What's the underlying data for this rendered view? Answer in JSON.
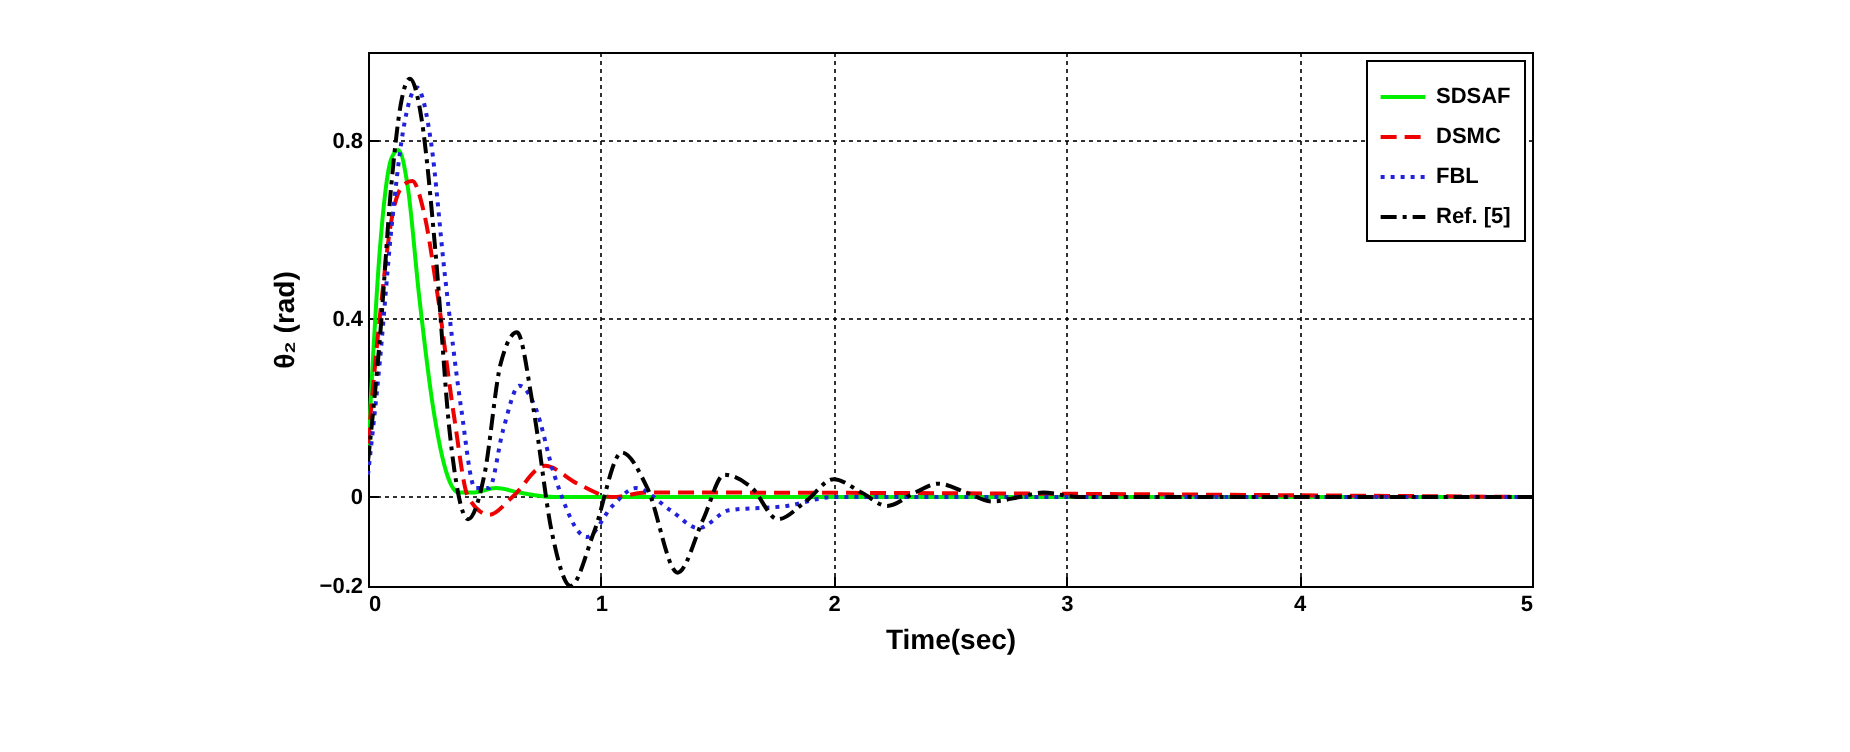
{
  "chart_data": {
    "type": "line",
    "xlabel": "Time(sec)",
    "ylabel": "θ₂ (rad)",
    "xlim": [
      0,
      5
    ],
    "xticks": [
      0,
      1,
      2,
      3,
      4,
      5
    ],
    "ylim": [
      -0.2,
      1
    ],
    "yticks": [
      -0.2,
      0,
      0.4,
      0.8
    ],
    "grid": true,
    "legend": "top right",
    "series": [
      {
        "name": "SDSAF",
        "color": "#00ee00",
        "line_style": "solid",
        "x": [
          0,
          0.05,
          0.1,
          0.13,
          0.17,
          0.22,
          0.28,
          0.34,
          0.39,
          0.45,
          0.55,
          0.65,
          0.8,
          1,
          5
        ],
        "values": [
          0.1,
          0.55,
          0.76,
          0.78,
          0.7,
          0.45,
          0.2,
          0.05,
          0.01,
          0.01,
          0.02,
          0.01,
          0,
          0,
          0
        ]
      },
      {
        "name": "DSMC",
        "color": "#ee0000",
        "line_style": "dashed",
        "x": [
          0,
          0.05,
          0.1,
          0.15,
          0.19,
          0.24,
          0.3,
          0.37,
          0.43,
          0.52,
          0.62,
          0.76,
          0.9,
          1.05,
          1.2,
          5
        ],
        "values": [
          0.12,
          0.4,
          0.62,
          0.7,
          0.71,
          0.64,
          0.45,
          0.18,
          0,
          -0.04,
          0,
          0.07,
          0.03,
          0,
          0.01,
          0
        ]
      },
      {
        "name": "FBL",
        "color": "#2222dd",
        "line_style": "dotted",
        "x": [
          0,
          0.05,
          0.1,
          0.15,
          0.21,
          0.27,
          0.33,
          0.4,
          0.46,
          0.52,
          0.58,
          0.65,
          0.72,
          0.8,
          0.94,
          1.05,
          1.15,
          1.3,
          1.42,
          1.55,
          1.8,
          2,
          5
        ],
        "values": [
          0.05,
          0.3,
          0.6,
          0.82,
          0.92,
          0.8,
          0.5,
          0.2,
          0.02,
          0.02,
          0.15,
          0.25,
          0.2,
          0.05,
          -0.09,
          -0.02,
          0.02,
          -0.03,
          -0.07,
          -0.03,
          -0.02,
          0,
          0
        ]
      },
      {
        "name": "Ref. [5]",
        "color": "#000000",
        "line_style": "dashdot",
        "x": [
          0,
          0.05,
          0.1,
          0.14,
          0.18,
          0.23,
          0.29,
          0.35,
          0.43,
          0.5,
          0.57,
          0.64,
          0.71,
          0.79,
          0.87,
          0.97,
          1.09,
          1.2,
          1.33,
          1.44,
          1.53,
          1.65,
          1.76,
          1.88,
          2,
          2.12,
          2.23,
          2.35,
          2.45,
          2.57,
          2.68,
          2.8,
          2.9,
          3.05,
          5
        ],
        "values": [
          0.08,
          0.35,
          0.7,
          0.88,
          0.94,
          0.85,
          0.55,
          0.15,
          -0.05,
          0.05,
          0.3,
          0.37,
          0.2,
          -0.08,
          -0.2,
          -0.08,
          0.1,
          0.02,
          -0.17,
          -0.05,
          0.05,
          0.02,
          -0.05,
          -0.01,
          0.04,
          0.01,
          -0.02,
          0.01,
          0.03,
          0.01,
          -0.01,
          0,
          0.01,
          0,
          0
        ]
      }
    ]
  }
}
